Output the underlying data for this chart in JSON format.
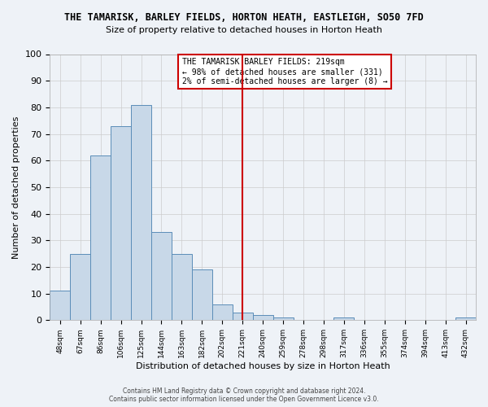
{
  "title": "THE TAMARISK, BARLEY FIELDS, HORTON HEATH, EASTLEIGH, SO50 7FD",
  "subtitle": "Size of property relative to detached houses in Horton Heath",
  "xlabel": "Distribution of detached houses by size in Horton Heath",
  "ylabel": "Number of detached properties",
  "bar_values": [
    11,
    25,
    62,
    73,
    81,
    33,
    25,
    19,
    6,
    3,
    2,
    1,
    0,
    0,
    1,
    0,
    0,
    0,
    0,
    0,
    1
  ],
  "xtick_labels": [
    "48sqm",
    "67sqm",
    "86sqm",
    "106sqm",
    "125sqm",
    "144sqm",
    "163sqm",
    "182sqm",
    "202sqm",
    "221sqm",
    "240sqm",
    "259sqm",
    "278sqm",
    "298sqm",
    "317sqm",
    "336sqm",
    "355sqm",
    "374sqm",
    "394sqm",
    "413sqm",
    "432sqm"
  ],
  "ylim": [
    0,
    100
  ],
  "yticks": [
    0,
    10,
    20,
    30,
    40,
    50,
    60,
    70,
    80,
    90,
    100
  ],
  "bar_color": "#c8d8e8",
  "bar_edge_color": "#5b8db8",
  "grid_color": "#cccccc",
  "vline_x": 9,
  "vline_color": "#cc0000",
  "annotation_text": "THE TAMARISK BARLEY FIELDS: 219sqm\n← 98% of detached houses are smaller (331)\n2% of semi-detached houses are larger (8) →",
  "annotation_box_color": "#ffffff",
  "annotation_box_edge": "#cc0000",
  "footer_text": "Contains HM Land Registry data © Crown copyright and database right 2024.\nContains public sector information licensed under the Open Government Licence v3.0.",
  "background_color": "#eef2f7",
  "plot_background": "#eef2f7"
}
